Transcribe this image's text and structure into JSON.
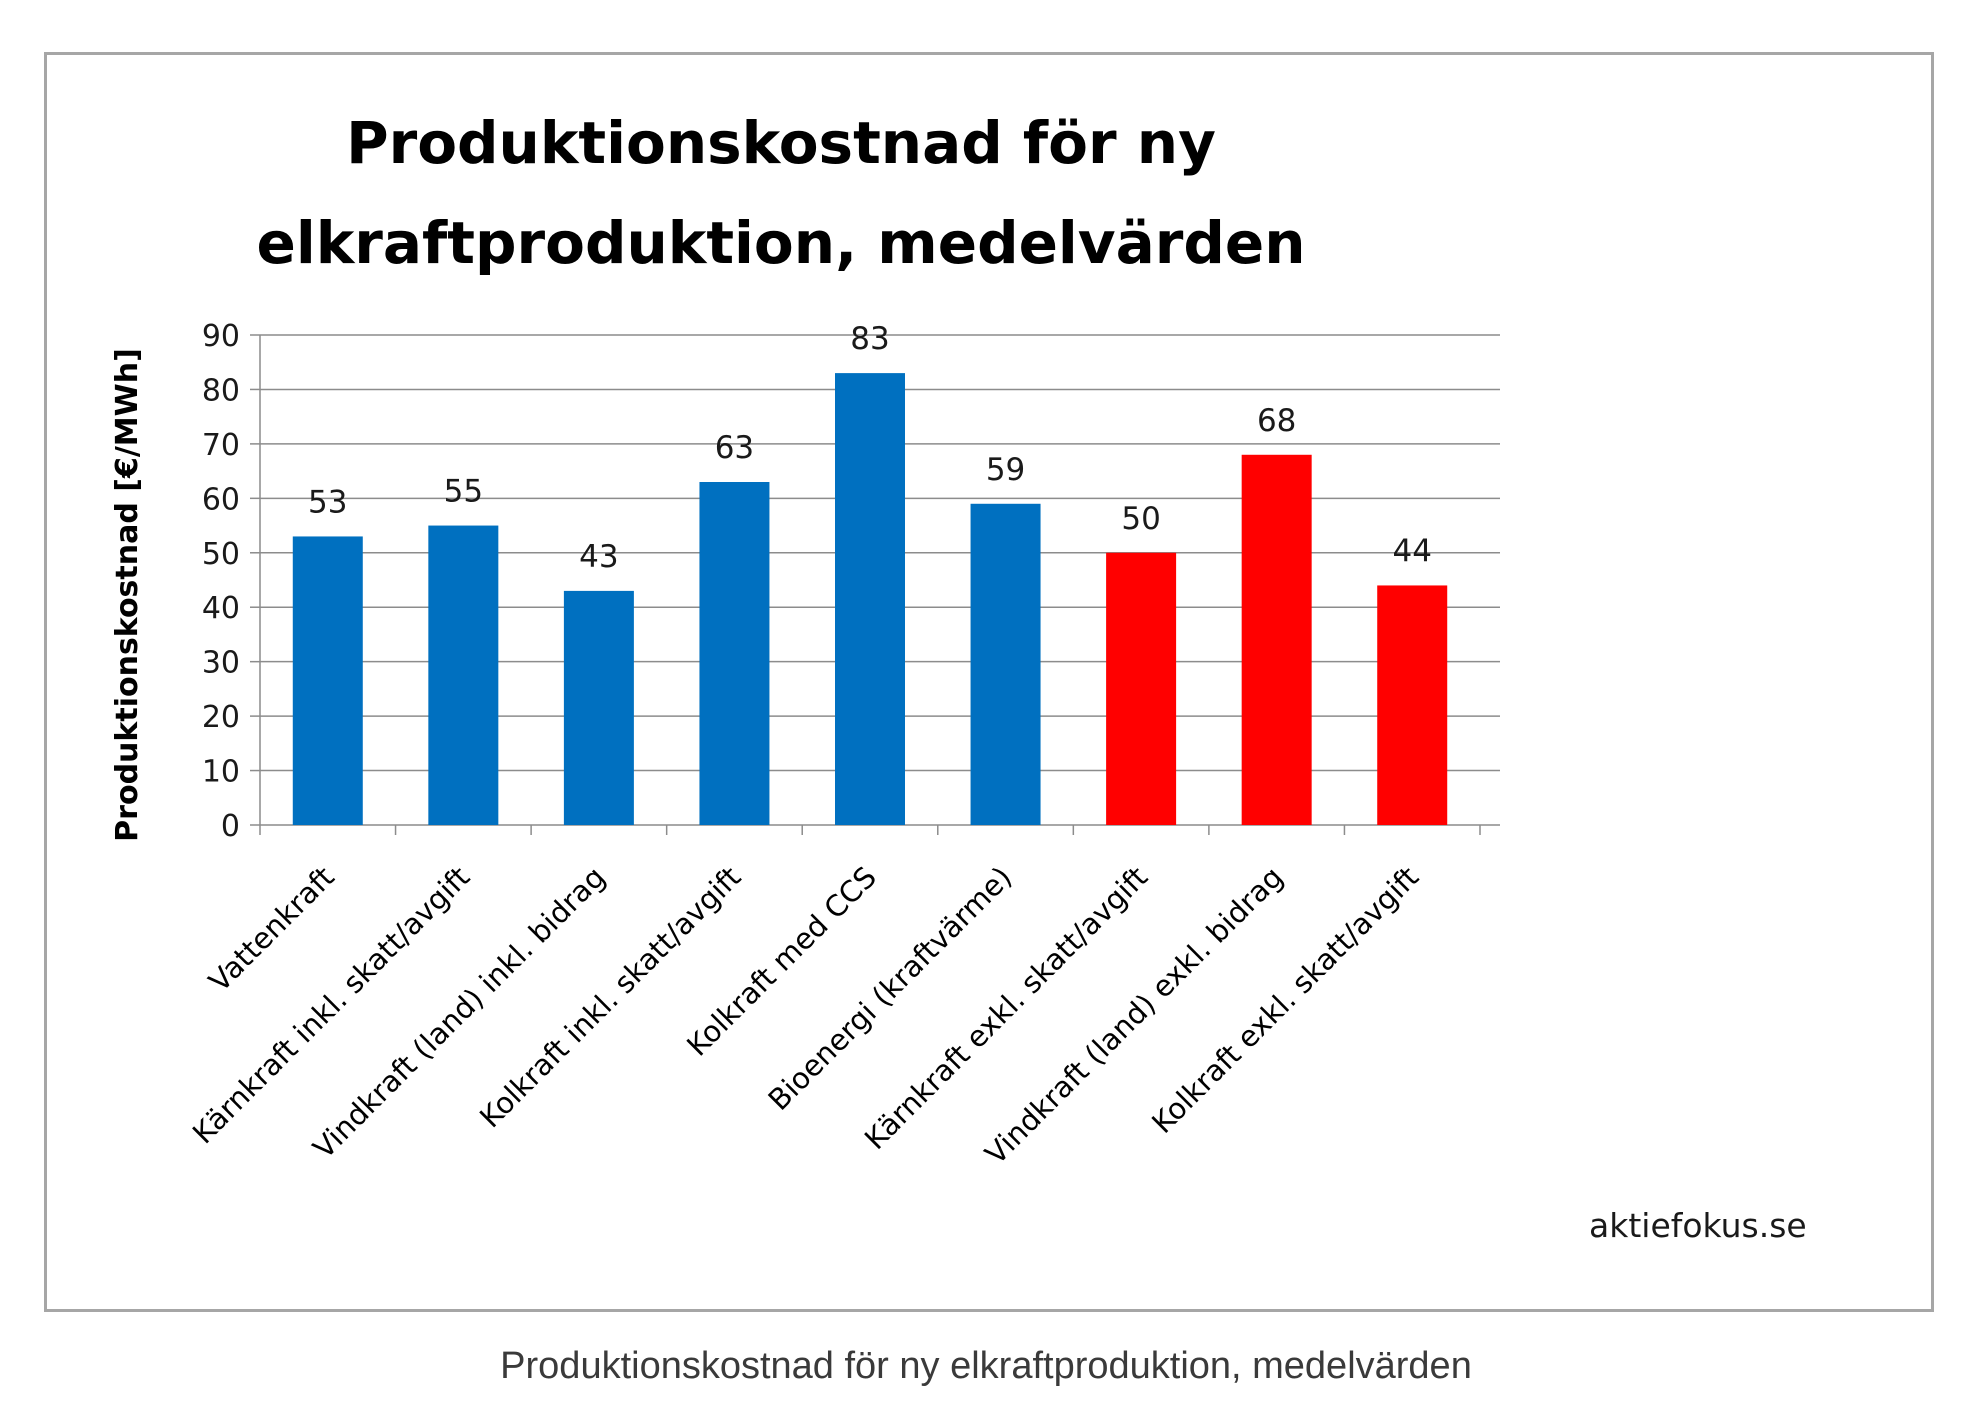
{
  "chart_data": {
    "type": "bar",
    "title": "Produktionskostnad för ny elkraftproduktion, medelvärden",
    "title_lines": [
      "Produktionskostnad för ny",
      "elkraftproduktion, medelvärden"
    ],
    "ylabel": "Produktionskostnad [€/MWh]",
    "xlabel": "",
    "ylim": [
      0,
      90
    ],
    "yticks": [
      0,
      10,
      20,
      30,
      40,
      50,
      60,
      70,
      80,
      90
    ],
    "grid": true,
    "categories": [
      "Vattenkraft",
      "Kärnkraft inkl. skatt/avgift",
      "Vindkraft (land) inkl. bidrag",
      "Kolkraft inkl. skatt/avgift",
      "Kolkraft med CCS",
      "Bioenergi (kraftvärme)",
      "Kärnkraft exkl. skatt/avgift",
      "Vindkraft (land) exkl. bidrag",
      "Kolkraft exkl. skatt/avgift"
    ],
    "values": [
      53,
      55,
      43,
      63,
      83,
      59,
      50,
      68,
      44
    ],
    "bar_colors": [
      "#0070c0",
      "#0070c0",
      "#0070c0",
      "#0070c0",
      "#0070c0",
      "#0070c0",
      "#ff0000",
      "#ff0000",
      "#ff0000"
    ],
    "data_labels": [
      "53",
      "55",
      "43",
      "63",
      "83",
      "59",
      "50",
      "68",
      "44"
    ]
  },
  "watermark": "aktiefokus.se",
  "caption": "Produktionskostnad för ny elkraftproduktion, medelvärden",
  "colors": {
    "grid": "#8c8c8c",
    "frame": "#a6a6a6"
  }
}
